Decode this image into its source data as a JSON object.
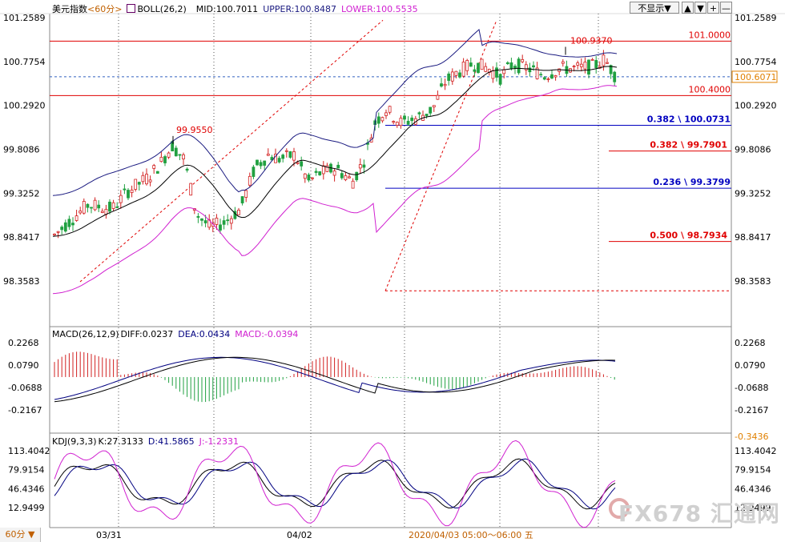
{
  "header": {
    "title": "美元指数",
    "period_tag": "<60分>",
    "indicator": "BOLL(26,2)",
    "mid": "MID:100.7011",
    "upper": "UPPER:100.8487",
    "lower": "LOWER:100.5535"
  },
  "controls": {
    "hide_label": "不显示▼",
    "buttons": [
      "▲",
      "▼",
      "+",
      "—"
    ]
  },
  "macd_header": {
    "name": "MACD(26,12,9)",
    "diff": "DIFF:0.0237",
    "dea": "DEA:0.0434",
    "macd": "MACD:-0.0394"
  },
  "kdj_header": {
    "name": "KDJ(9,3,3)",
    "k": "K:27.3133",
    "d": "D:41.5865",
    "j": "J:-1.2331"
  },
  "colors": {
    "up": "#d22020",
    "down": "#20a040",
    "upper_band": "#1a1a80",
    "lower_band": "#d020d0",
    "mid_band": "#000000",
    "fib_red": "#e00000",
    "fib_blue": "#0000c0",
    "diff": "#000080",
    "dea": "#000000",
    "k": "#000000",
    "d": "#000080",
    "j": "#d020d0"
  },
  "chart_data": [
    {
      "type": "candlestick",
      "title": "美元指数",
      "y_ticks_left": [
        "101.2589",
        "100.7754",
        "100.2920",
        "99.8086",
        "99.3252",
        "98.8417",
        "98.3583"
      ],
      "y_ticks_right": [
        "101.2589",
        "100.7754",
        "100.2920",
        "99.8086",
        "99.3252",
        "98.8417",
        "98.3583"
      ],
      "ylim": [
        98.2,
        101.35
      ],
      "x_labels": [
        "03/31",
        "04/02"
      ],
      "crosshair_label": "2020/04/03 05:00～06:00 五",
      "current_price": "100.6071",
      "annotations": [
        {
          "text": "99.9550",
          "value": 99.955
        },
        {
          "text": "100.9370",
          "value": 100.937
        }
      ],
      "horizontal_lines": [
        {
          "label": "101.0000",
          "value": 101.0,
          "color": "red"
        },
        {
          "label": "100.4000",
          "value": 100.4,
          "color": "red"
        },
        {
          "label": "0.382 \\ 100.0731",
          "value": 100.0731,
          "color": "blue"
        },
        {
          "label": "0.382 \\ 99.7901",
          "value": 99.7901,
          "color": "red"
        },
        {
          "label": "0.236 \\ 99.3799",
          "value": 99.3799,
          "color": "blue"
        },
        {
          "label": "0.500 \\ 98.7934",
          "value": 98.7934,
          "color": "red"
        }
      ]
    },
    {
      "type": "bar",
      "title": "MACD(26,12,9)",
      "y_ticks": [
        "0.2268",
        "0.0790",
        "-0.0688",
        "-0.2167"
      ],
      "right_extra": "-0.3436"
    },
    {
      "type": "line",
      "title": "KDJ(9,3,3)",
      "y_ticks": [
        "113.4042",
        "79.9154",
        "46.4346",
        "12.9499"
      ]
    }
  ],
  "watermark": "FX678 汇通网"
}
